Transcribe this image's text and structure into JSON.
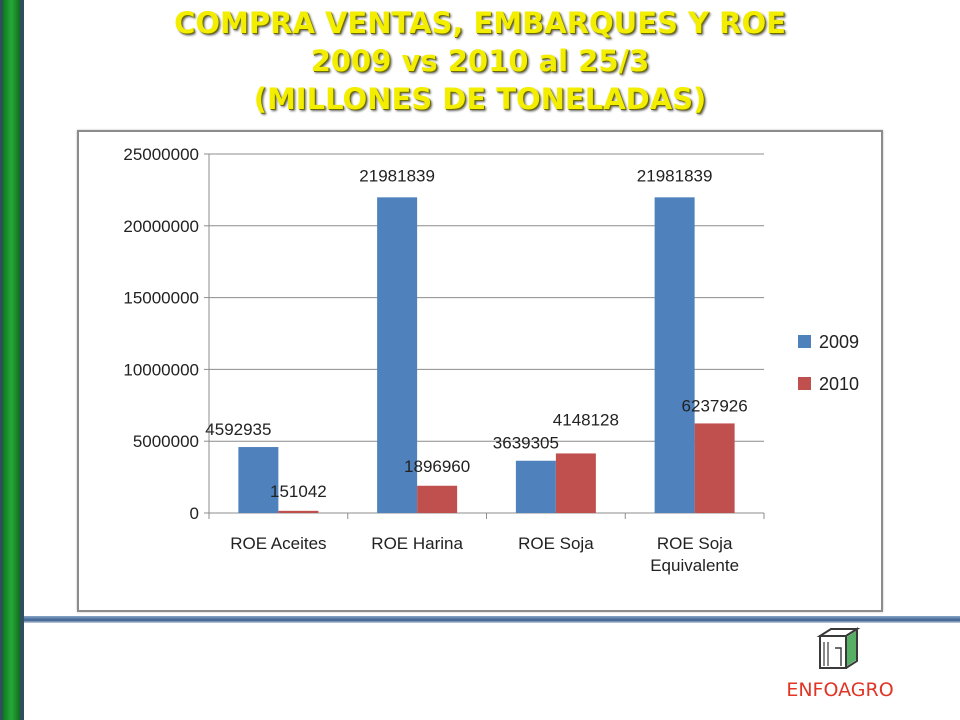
{
  "slide": {
    "title_lines": [
      "COMPRA VENTAS, EMBARQUES Y ROE",
      "2009 vs 2010 al 25/3",
      "(MILLONES DE TONELADAS)"
    ],
    "logo_text": "ENFOAGRO"
  },
  "chart_data": {
    "type": "bar",
    "categories": [
      [
        "ROE Aceites"
      ],
      [
        "ROE Harina"
      ],
      [
        "ROE Soja"
      ],
      [
        "ROE Soja",
        "Equivalente"
      ]
    ],
    "series": [
      {
        "name": "2009",
        "values": [
          4592935,
          21981839,
          3639305,
          21981839
        ],
        "color": "#4f81bd"
      },
      {
        "name": "2010",
        "values": [
          151042,
          1896960,
          4148128,
          6237926
        ],
        "color": "#c0504d"
      }
    ],
    "ylim": [
      0,
      25000000
    ],
    "yticks": [
      0,
      5000000,
      10000000,
      15000000,
      20000000,
      25000000
    ],
    "grid": true,
    "legend": "right"
  }
}
